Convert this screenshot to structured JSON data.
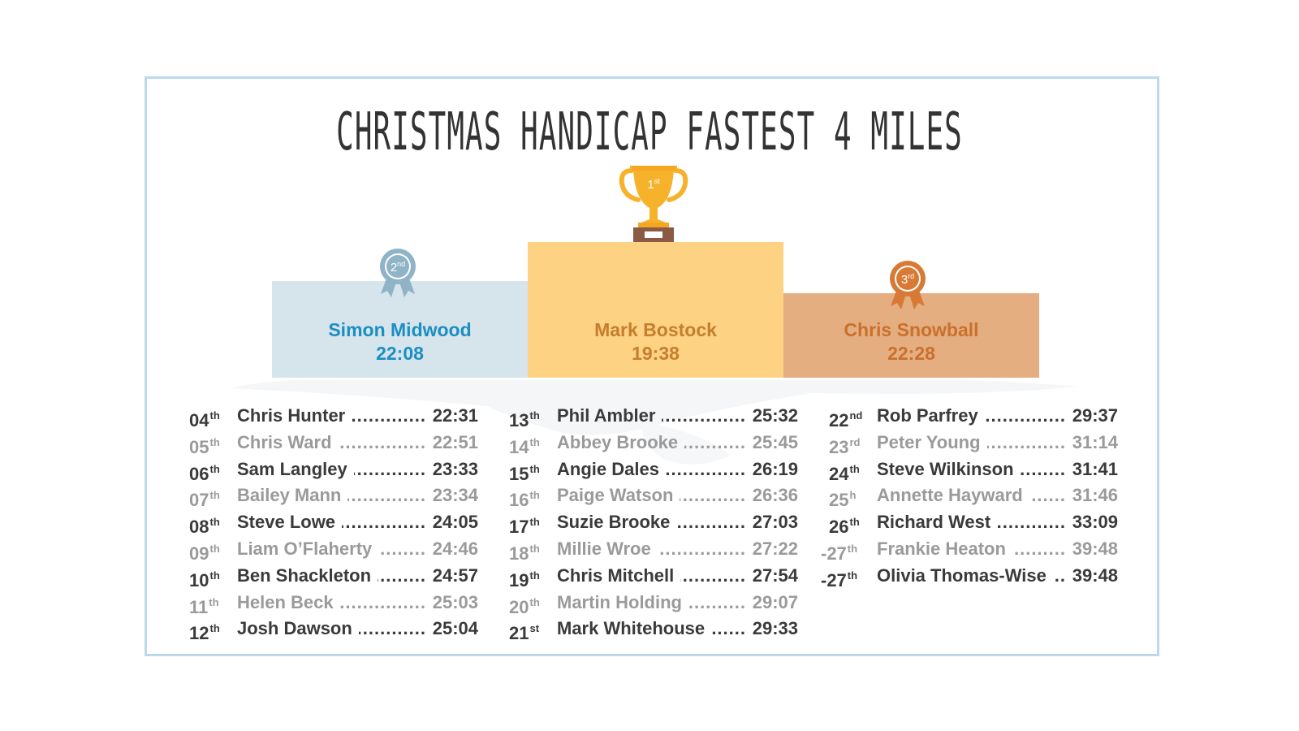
{
  "title": "CHRISTMAS HANDICAP FASTEST 4 MILES",
  "colors": {
    "silver": "#1b8ec2",
    "gold": "#fdd283",
    "bronze": "#e5ae81",
    "frame": "#bcd9ec"
  },
  "podium": {
    "first": {
      "badge_num": "1",
      "badge_suffix": "st",
      "name": "Mark Bostock",
      "time": "19:38",
      "icon": "trophy-icon"
    },
    "second": {
      "badge_num": "2",
      "badge_suffix": "nd",
      "name": "Simon Midwood",
      "time": "22:08",
      "icon": "rosette-icon"
    },
    "third": {
      "badge_num": "3",
      "badge_suffix": "rd",
      "name": "Chris Snowball",
      "time": "22:28",
      "icon": "rosette-icon"
    }
  },
  "results": [
    [
      {
        "num": "04",
        "suf": "th",
        "name": "Chris Hunter",
        "time": "22:31"
      },
      {
        "num": "05",
        "suf": "th",
        "name": "Chris Ward",
        "time": "22:51"
      },
      {
        "num": "06",
        "suf": "th",
        "name": "Sam Langley",
        "time": "23:33"
      },
      {
        "num": "07",
        "suf": "th",
        "name": "Bailey Mann",
        "time": "23:34"
      },
      {
        "num": "08",
        "suf": "th",
        "name": "Steve Lowe",
        "time": "24:05"
      },
      {
        "num": "09",
        "suf": "th",
        "name": "Liam O’Flaherty",
        "time": "24:46"
      },
      {
        "num": "10",
        "suf": "th",
        "name": "Ben Shackleton",
        "time": "24:57"
      },
      {
        "num": "11",
        "suf": "th",
        "name": "Helen Beck",
        "time": "25:03"
      },
      {
        "num": "12",
        "suf": "th",
        "name": "Josh Dawson",
        "time": "25:04"
      }
    ],
    [
      {
        "num": "13",
        "suf": "th",
        "name": "Phil Ambler",
        "time": "25:32"
      },
      {
        "num": "14",
        "suf": "th",
        "name": "Abbey Brooke",
        "time": "25:45"
      },
      {
        "num": "15",
        "suf": "th",
        "name": "Angie Dales",
        "time": "26:19"
      },
      {
        "num": "16",
        "suf": "th",
        "name": "Paige Watson",
        "time": "26:36"
      },
      {
        "num": "17",
        "suf": "th",
        "name": "Suzie Brooke",
        "time": "27:03"
      },
      {
        "num": "18",
        "suf": "th",
        "name": "Millie Wroe",
        "time": "27:22"
      },
      {
        "num": "19",
        "suf": "th",
        "name": "Chris Mitchell",
        "time": "27:54"
      },
      {
        "num": "20",
        "suf": "th",
        "name": "Martin Holding",
        "time": "29:07"
      },
      {
        "num": "21",
        "suf": "st",
        "name": "Mark Whitehouse",
        "time": "29:33"
      }
    ],
    [
      {
        "num": "22",
        "suf": "nd",
        "name": "Rob Parfrey",
        "time": "29:37"
      },
      {
        "num": "23",
        "suf": "rd",
        "name": "Peter Young",
        "time": "31:14"
      },
      {
        "num": "24",
        "suf": "th",
        "name": "Steve Wilkinson",
        "time": "31:41"
      },
      {
        "num": "25",
        "suf": "h",
        "name": "Annette Hayward",
        "time": "31:46"
      },
      {
        "num": "26",
        "suf": "th",
        "name": "Richard West",
        "time": "33:09"
      },
      {
        "num": "-27",
        "suf": "th",
        "name": "Frankie Heaton",
        "time": "39:48"
      },
      {
        "num": "-27",
        "suf": "th",
        "name": "Olivia Thomas-Wise",
        "time": "39:48"
      }
    ]
  ]
}
